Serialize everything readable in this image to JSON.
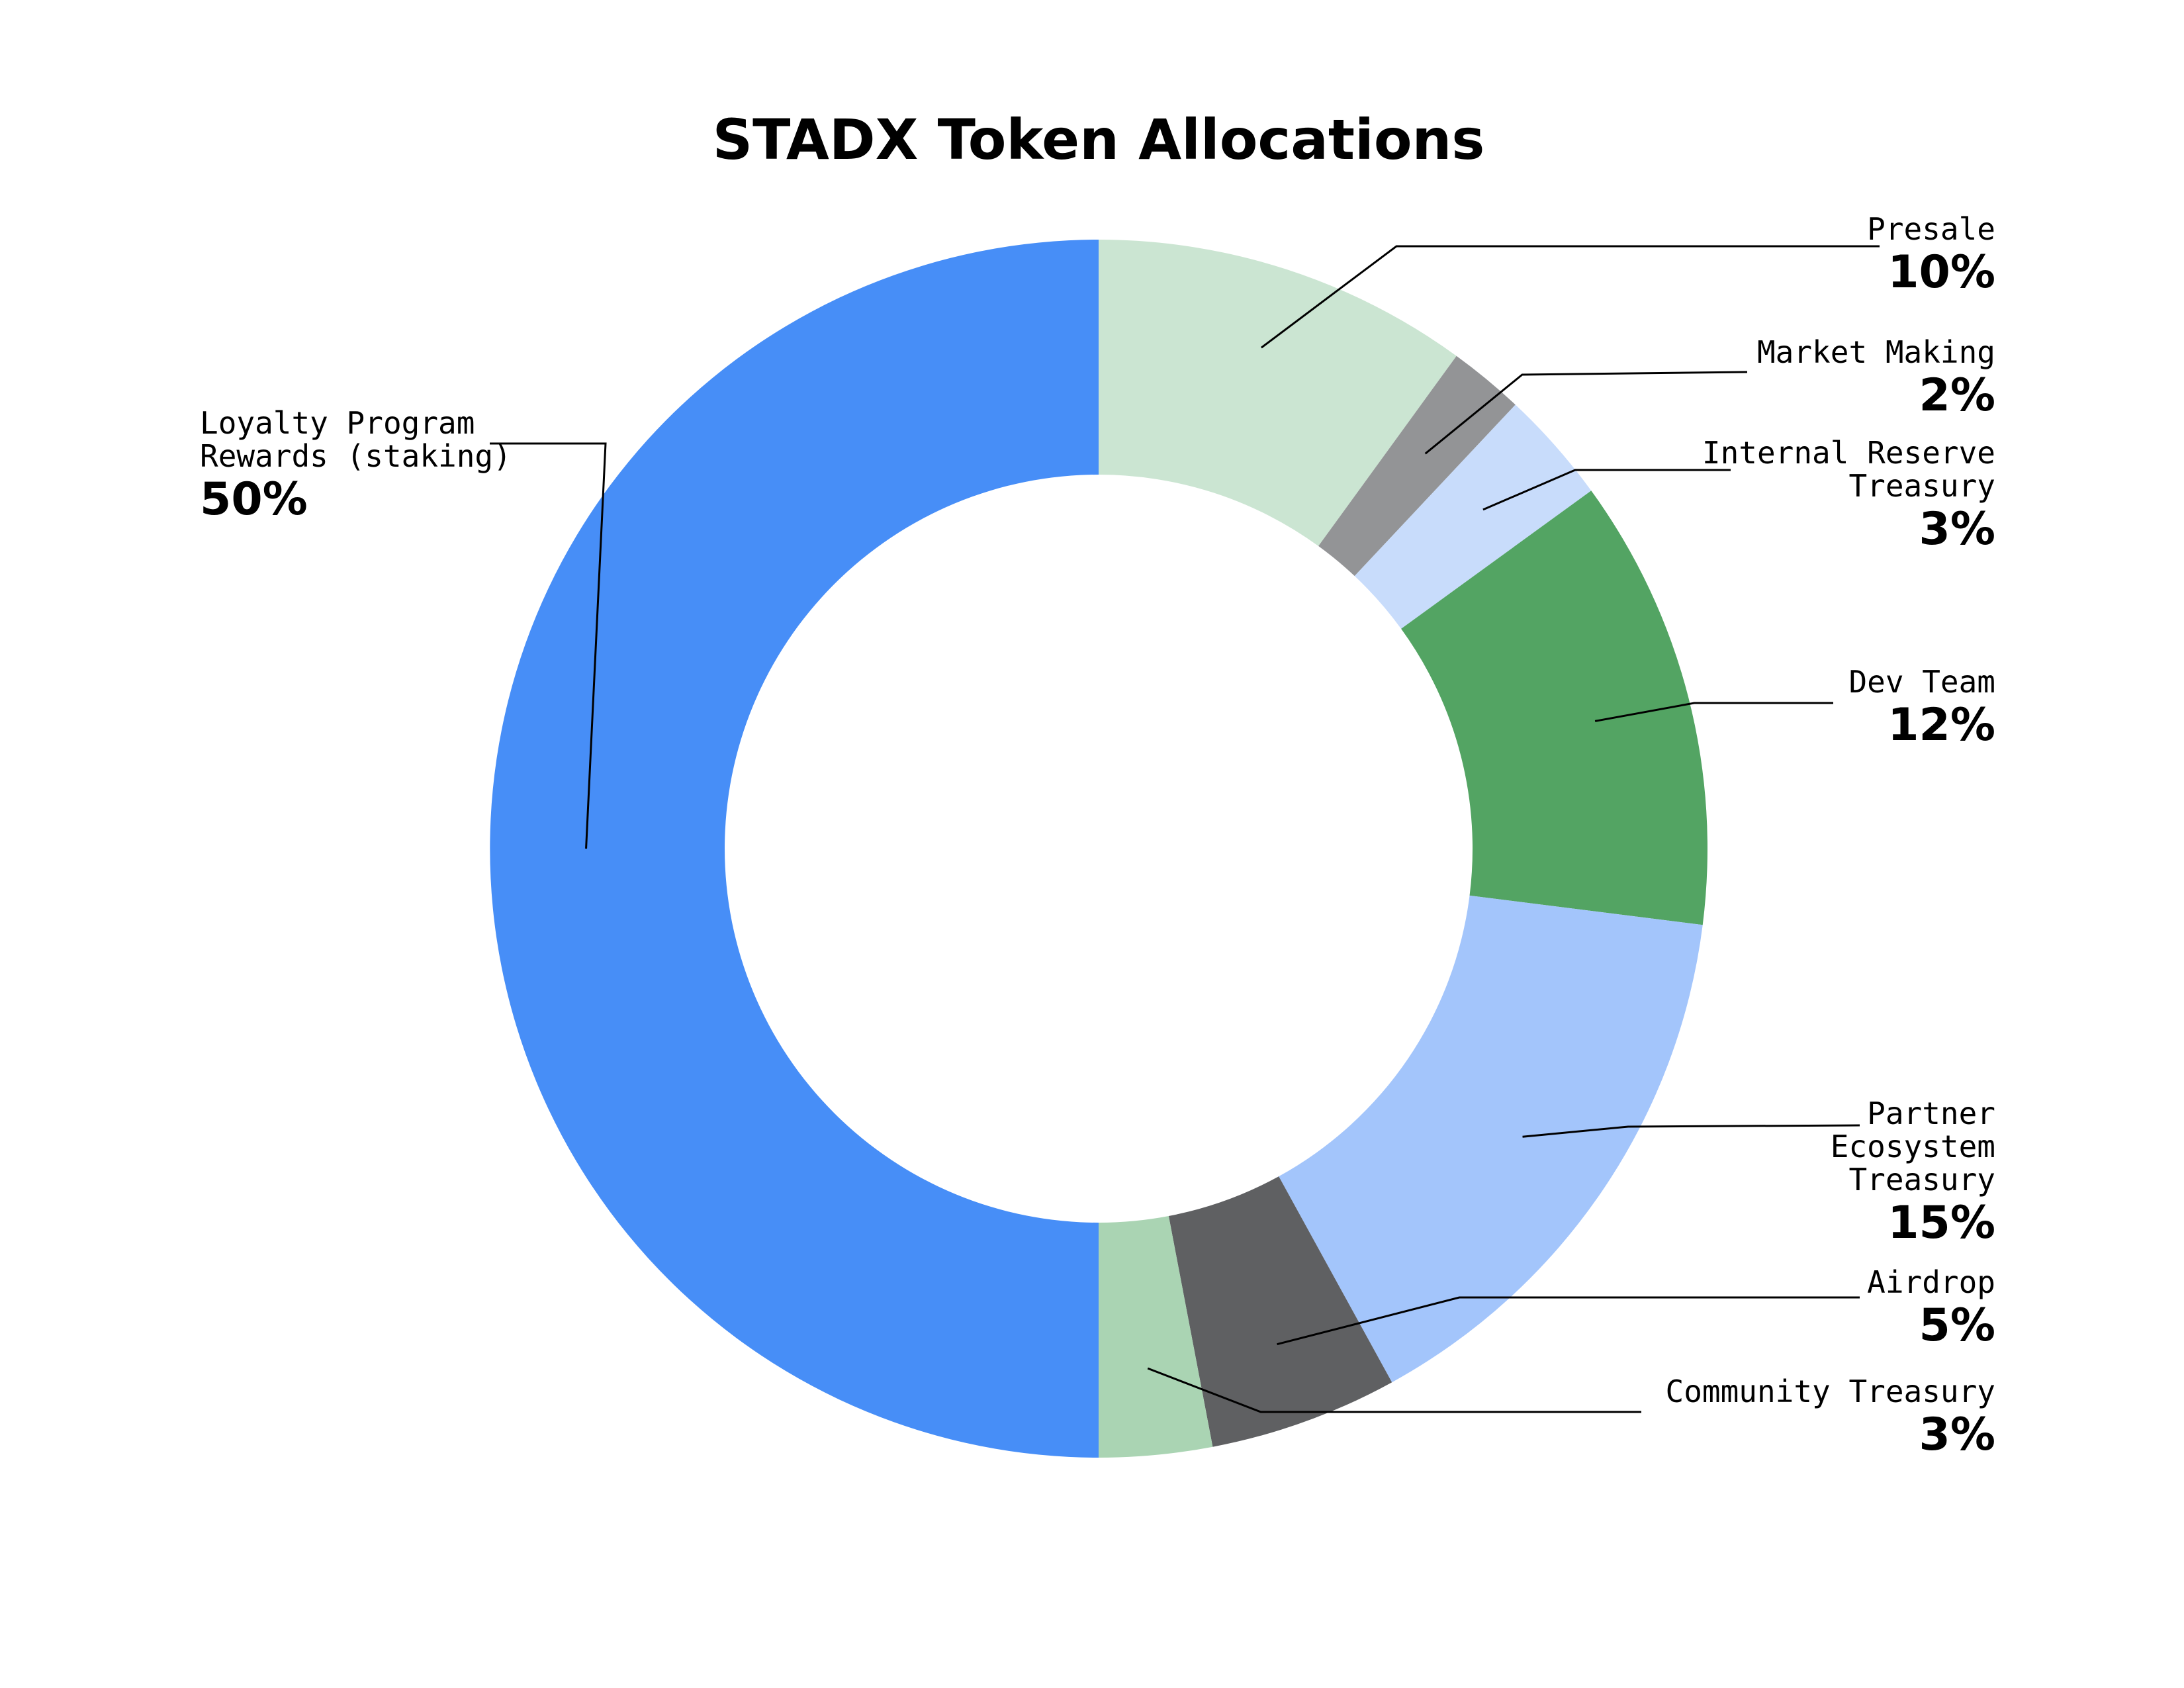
{
  "chart_data": {
    "type": "pie",
    "title": "STADX Token Allocations",
    "donut": true,
    "slices": [
      {
        "label_lines": [
          "Presale"
        ],
        "value": 10,
        "value_label": "10%",
        "color": "#cbe5d2"
      },
      {
        "label_lines": [
          "Market Making"
        ],
        "value": 2,
        "value_label": "2%",
        "color": "#939496"
      },
      {
        "label_lines": [
          "Internal Reserve",
          "Treasury"
        ],
        "value": 3,
        "value_label": "3%",
        "color": "#c8dcfb"
      },
      {
        "label_lines": [
          "Dev Team"
        ],
        "value": 12,
        "value_label": "12%",
        "color": "#53a463"
      },
      {
        "label_lines": [
          "Partner",
          "Ecosystem",
          "Treasury"
        ],
        "value": 15,
        "value_label": "15%",
        "color": "#a3c5fb"
      },
      {
        "label_lines": [
          "Airdrop"
        ],
        "value": 5,
        "value_label": "5%",
        "color": "#5f6062"
      },
      {
        "label_lines": [
          "Community Treasury"
        ],
        "value": 3,
        "value_label": "3%",
        "color": "#aad4b3"
      },
      {
        "label_lines": [
          "Loyalty Program",
          "Rewards (staking)"
        ],
        "value": 50,
        "value_label": "50%",
        "color": "#478ef7"
      }
    ]
  }
}
